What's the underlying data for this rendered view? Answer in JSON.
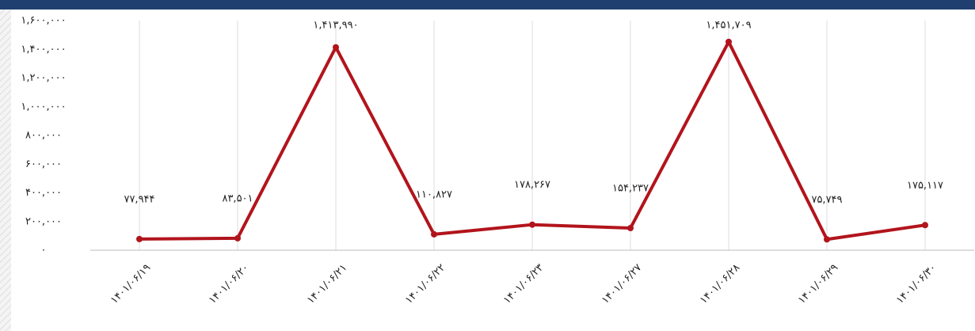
{
  "chart_data": {
    "type": "line",
    "categories": [
      "۱۴۰۱/۰۶/۱۹",
      "۱۴۰۱/۰۶/۲۰",
      "۱۴۰۱/۰۶/۲۱",
      "۱۴۰۱/۰۶/۲۲",
      "۱۴۰۱/۰۶/۲۳",
      "۱۴۰۱/۰۶/۲۷",
      "۱۴۰۱/۰۶/۲۸",
      "۱۴۰۱/۰۶/۲۹",
      "۱۴۰۱/۰۶/۳۰"
    ],
    "values": [
      77944,
      83501,
      1413990,
      110827,
      178267,
      154237,
      1451709,
      75749,
      175117
    ],
    "value_labels": [
      "۷۷,۹۴۴",
      "۸۳,۵۰۱",
      "۱,۴۱۳,۹۹۰",
      "۱۱۰,۸۲۷",
      "۱۷۸,۲۶۷",
      "۱۵۴,۲۳۷",
      "۱,۴۵۱,۷۰۹",
      "۷۵,۷۴۹",
      "۱۷۵,۱۱۷"
    ],
    "color": "#b2141c",
    "ylim": [
      0,
      1600000
    ],
    "yticks": [
      {
        "value": 0,
        "label": "۰"
      },
      {
        "value": 200000,
        "label": "۲۰۰,۰۰۰"
      },
      {
        "value": 400000,
        "label": "۴۰۰,۰۰۰"
      },
      {
        "value": 600000,
        "label": "۶۰۰,۰۰۰"
      },
      {
        "value": 800000,
        "label": "۸۰۰,۰۰۰"
      },
      {
        "value": 1000000,
        "label": "۱,۰۰۰,۰۰۰"
      },
      {
        "value": 1200000,
        "label": "۱,۲۰۰,۰۰۰"
      },
      {
        "value": 1400000,
        "label": "۱,۴۰۰,۰۰۰"
      },
      {
        "value": 1600000,
        "label": "۱,۶۰۰,۰۰۰"
      }
    ],
    "grid": true
  }
}
